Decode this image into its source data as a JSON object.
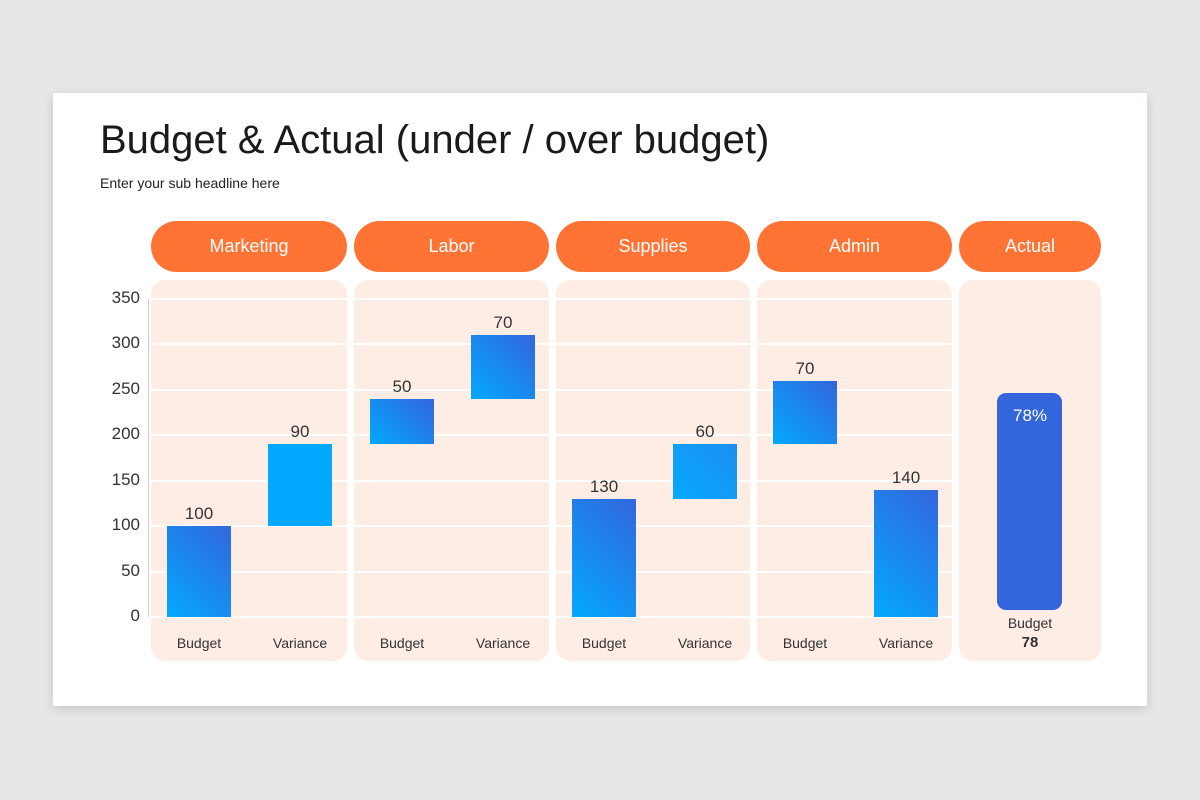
{
  "title": "Budget & Actual (under / over budget)",
  "subtitle": "Enter your sub headline here",
  "colors": {
    "accent": "#ff7434",
    "panel": "#fdede5",
    "bar_light": "#03a9fe",
    "bar_dark": "#3366dd"
  },
  "chart_data": {
    "type": "bar",
    "subtype": "waterfall",
    "ylim": [
      0,
      350
    ],
    "yticks": [
      "0",
      "50",
      "100",
      "150",
      "200",
      "250",
      "300",
      "350"
    ],
    "grid": true,
    "groups": [
      {
        "name": "Marketing",
        "bars": [
          {
            "label": "Budget",
            "value": 100,
            "start": 0
          },
          {
            "label": "Variance",
            "value": 90,
            "start": 100
          }
        ]
      },
      {
        "name": "Labor",
        "bars": [
          {
            "label": "Budget",
            "value": 50,
            "start": 190
          },
          {
            "label": "Variance",
            "value": 70,
            "start": 240
          }
        ]
      },
      {
        "name": "Supplies",
        "bars": [
          {
            "label": "Budget",
            "value": 130,
            "start": 0
          },
          {
            "label": "Variance",
            "value": 60,
            "start": 130
          }
        ]
      },
      {
        "name": "Admin",
        "bars": [
          {
            "label": "Budget",
            "value": 70,
            "start": 190
          },
          {
            "label": "Variance",
            "value": 140,
            "start": 0
          }
        ]
      }
    ],
    "actual": {
      "name": "Actual",
      "percent_label": "78%",
      "label": "Budget",
      "value": "78"
    }
  }
}
